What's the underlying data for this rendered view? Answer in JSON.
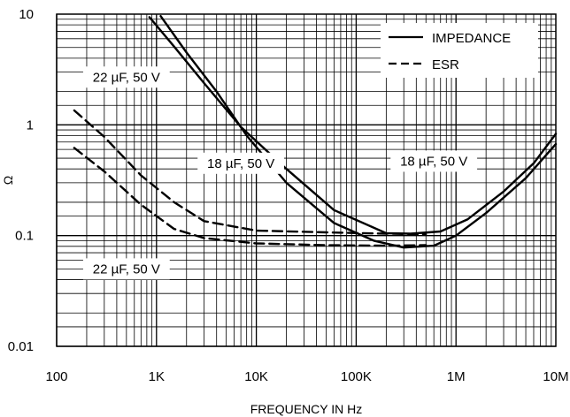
{
  "chart_data": {
    "type": "line",
    "xscale": "log",
    "yscale": "log",
    "xlim": [
      100,
      10000000
    ],
    "ylim": [
      0.01,
      10
    ],
    "xlabel": "FREQUENCY IN Hz",
    "ylabel": "Ω",
    "x_tick_labels": [
      {
        "value": 100,
        "label": "100"
      },
      {
        "value": 1000,
        "label": "1K"
      },
      {
        "value": 10000,
        "label": "10K"
      },
      {
        "value": 100000,
        "label": "100K"
      },
      {
        "value": 1000000,
        "label": "1M"
      },
      {
        "value": 10000000,
        "label": "10M"
      }
    ],
    "y_tick_labels": [
      {
        "value": 10,
        "label": "10"
      },
      {
        "value": 1,
        "label": "1"
      },
      {
        "value": 0.1,
        "label": "0.1"
      },
      {
        "value": 0.01,
        "label": "0.01"
      }
    ],
    "grid": true,
    "legend": {
      "position": "top-right",
      "entries": [
        {
          "label": "IMPEDANCE",
          "style": "solid"
        },
        {
          "label": "ESR",
          "style": "dashed"
        }
      ]
    },
    "annotations": [
      {
        "text": "22 µF, 50 V",
        "x": 500,
        "y": 2.7
      },
      {
        "text": "18 µF, 50 V",
        "x": 7000,
        "y": 0.45
      },
      {
        "text": "18 µF, 50 V",
        "x": 600000,
        "y": 0.47
      },
      {
        "text": "22 µF, 50 V",
        "x": 500,
        "y": 0.05
      }
    ],
    "series": [
      {
        "style": "solid",
        "x": [
          850,
          1500,
          3000,
          7000,
          20000,
          60000,
          200000,
          350000,
          700000,
          1300000,
          3000000,
          6000000,
          10000000
        ],
        "y": [
          9.4,
          5.1,
          2.38,
          0.96,
          0.4,
          0.17,
          0.105,
          0.104,
          0.109,
          0.14,
          0.25,
          0.45,
          0.83
        ]
      },
      {
        "style": "solid",
        "x": [
          1100,
          2000,
          4000,
          8000,
          20000,
          60000,
          150000,
          300000,
          600000,
          1000000,
          2000000,
          5000000,
          10000000
        ],
        "y": [
          9.6,
          4.5,
          2.0,
          0.8,
          0.3,
          0.13,
          0.09,
          0.078,
          0.081,
          0.1,
          0.16,
          0.33,
          0.67
        ]
      },
      {
        "style": "dashed",
        "x": [
          150,
          300,
          700,
          1500,
          3000,
          10000,
          50000,
          200000,
          500000
        ],
        "y": [
          1.35,
          0.78,
          0.35,
          0.2,
          0.135,
          0.111,
          0.107,
          0.104,
          0.103
        ]
      },
      {
        "style": "dashed",
        "x": [
          150,
          300,
          700,
          1500,
          3000,
          10000,
          50000,
          200000,
          500000
        ],
        "y": [
          0.62,
          0.38,
          0.19,
          0.115,
          0.095,
          0.085,
          0.082,
          0.081,
          0.082
        ]
      }
    ]
  }
}
